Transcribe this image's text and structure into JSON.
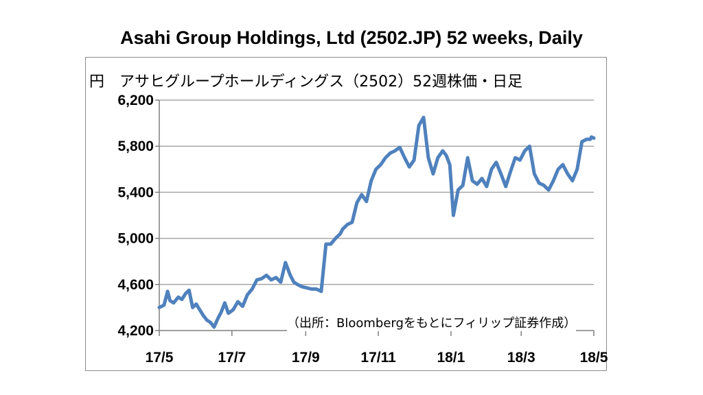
{
  "title": "Asahi Group Holdings, Ltd  (2502.JP) 52 weeks, Daily",
  "subtitle": "円　アサヒグループホールディングス（2502）52週株価・日足",
  "source": "（出所：Bloombergをもとにフィリップ証券作成）",
  "colors": {
    "line": "#4f81bd",
    "grid": "#a6a6a6",
    "axis": "#7f7f7f"
  },
  "chart_data": {
    "type": "line",
    "title": "Asahi Group Holdings, Ltd  (2502.JP) 52 weeks, Daily",
    "ylabel": "円",
    "ylim": [
      4200,
      6200
    ],
    "y_ticks": [
      4200,
      4600,
      5000,
      5400,
      5800,
      6200
    ],
    "y_tick_labels": [
      "4,200",
      "4,600",
      "5,000",
      "5,400",
      "5,800",
      "6,200"
    ],
    "xlim": [
      "2017-05-01",
      "2018-05-01"
    ],
    "x_ticks": [
      "2017-05-01",
      "2017-07-01",
      "2017-09-01",
      "2017-11-01",
      "2018-01-01",
      "2018-03-01",
      "2018-05-01"
    ],
    "x_tick_labels": [
      "17/5",
      "17/7",
      "17/9",
      "17/11",
      "18/1",
      "18/3",
      "18/5"
    ],
    "grid": "horizontal",
    "legend": "none",
    "series": [
      {
        "x": [
          "2017-05-01",
          "2017-05-05",
          "2017-05-08",
          "2017-05-10",
          "2017-05-13",
          "2017-05-17",
          "2017-05-20",
          "2017-05-23",
          "2017-05-26",
          "2017-05-29",
          "2017-06-01",
          "2017-06-04",
          "2017-06-07",
          "2017-06-10",
          "2017-06-13",
          "2017-06-16",
          "2017-06-19",
          "2017-06-22",
          "2017-06-25",
          "2017-06-28",
          "2017-07-02",
          "2017-07-06",
          "2017-07-10",
          "2017-07-14",
          "2017-07-18",
          "2017-07-22",
          "2017-07-26",
          "2017-07-30",
          "2017-08-03",
          "2017-08-07",
          "2017-08-11",
          "2017-08-15",
          "2017-08-19",
          "2017-08-22",
          "2017-08-25",
          "2017-08-29",
          "2017-09-02",
          "2017-09-06",
          "2017-09-10",
          "2017-09-14",
          "2017-09-18",
          "2017-09-22",
          "2017-09-26",
          "2017-09-30",
          "2017-10-02",
          "2017-10-06",
          "2017-10-10",
          "2017-10-14",
          "2017-10-18",
          "2017-10-22",
          "2017-10-26",
          "2017-10-30",
          "2017-11-03",
          "2017-11-07",
          "2017-11-11",
          "2017-11-15",
          "2017-11-19",
          "2017-11-23",
          "2017-11-27",
          "2017-12-01",
          "2017-12-05",
          "2017-12-09",
          "2017-12-13",
          "2017-12-17",
          "2017-12-21",
          "2017-12-25",
          "2017-12-28",
          "2017-12-31",
          "2018-01-03",
          "2018-01-07",
          "2018-01-11",
          "2018-01-15",
          "2018-01-19",
          "2018-01-23",
          "2018-01-27",
          "2018-01-31",
          "2018-02-04",
          "2018-02-08",
          "2018-02-12",
          "2018-02-16",
          "2018-02-20",
          "2018-02-24",
          "2018-02-28",
          "2018-03-04",
          "2018-03-08",
          "2018-03-12",
          "2018-03-16",
          "2018-03-20",
          "2018-03-24",
          "2018-03-28",
          "2018-04-01",
          "2018-04-05",
          "2018-04-09",
          "2018-04-13",
          "2018-04-17",
          "2018-04-21",
          "2018-04-25",
          "2018-04-28",
          "2018-04-29",
          "2018-05-01"
        ],
        "values": [
          4400,
          4420,
          4540,
          4460,
          4440,
          4490,
          4470,
          4520,
          4550,
          4400,
          4430,
          4380,
          4330,
          4290,
          4270,
          4230,
          4300,
          4360,
          4440,
          4350,
          4380,
          4450,
          4410,
          4510,
          4560,
          4640,
          4650,
          4680,
          4640,
          4660,
          4620,
          4790,
          4680,
          4620,
          4600,
          4580,
          4570,
          4560,
          4560,
          4540,
          4950,
          4950,
          5000,
          5040,
          5080,
          5120,
          5140,
          5310,
          5380,
          5320,
          5500,
          5600,
          5640,
          5700,
          5740,
          5760,
          5790,
          5700,
          5620,
          5680,
          5980,
          6050,
          5700,
          5560,
          5700,
          5760,
          5720,
          5640,
          5200,
          5420,
          5460,
          5700,
          5500,
          5470,
          5520,
          5450,
          5600,
          5660,
          5560,
          5450,
          5580,
          5700,
          5680,
          5760,
          5800,
          5560,
          5480,
          5460,
          5420,
          5500,
          5600,
          5640,
          5560,
          5500,
          5600,
          5840,
          5860,
          5860,
          5880,
          5870
        ]
      }
    ]
  }
}
